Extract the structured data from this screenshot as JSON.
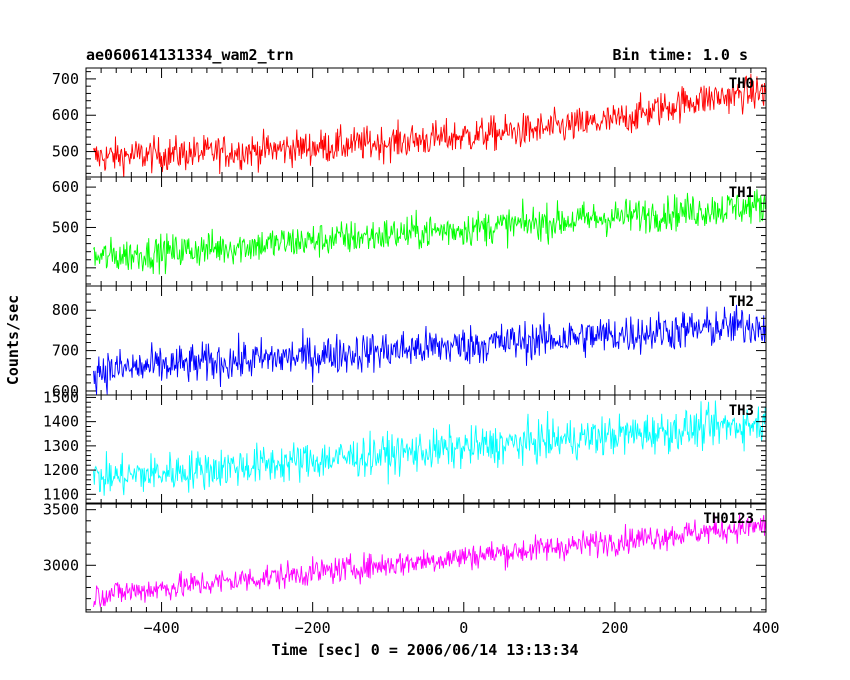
{
  "chart_data": {
    "type": "line",
    "title_left": "ae060614131334_wam2_trn",
    "title_right": "Bin time: 1.0 s",
    "xlabel": "Time [sec] 0 = 2006/06/14 13:13:34",
    "ylabel": "Counts/sec",
    "x_range": [
      -500,
      400
    ],
    "x_ticks": [
      -400,
      -200,
      0,
      200,
      400
    ],
    "x_tick_labels": [
      "−400",
      "−200",
      "0",
      "200",
      "400"
    ],
    "bin_time_s": 1.0,
    "grid": false,
    "panels": [
      {
        "name": "TH0",
        "color": "#ff0000",
        "ylim": [
          430,
          730
        ],
        "y_ticks": [
          500,
          600,
          700
        ],
        "y_tick_labels": [
          "500",
          "600",
          "700"
        ],
        "trend_x": [
          -490,
          -300,
          -100,
          100,
          200,
          300,
          400
        ],
        "trend_y": [
          485,
          500,
          525,
          560,
          585,
          640,
          665
        ],
        "noise_amplitude": 24
      },
      {
        "name": "TH1",
        "color": "#00ff00",
        "ylim": [
          355,
          625
        ],
        "y_ticks": [
          400,
          500,
          600
        ],
        "y_tick_labels": [
          "400",
          "500",
          "600"
        ],
        "trend_x": [
          -490,
          400
        ],
        "trend_y": [
          425,
          555
        ],
        "noise_amplitude": 22
      },
      {
        "name": "TH2",
        "color": "#0000ff",
        "ylim": [
          590,
          860
        ],
        "y_ticks": [
          600,
          700,
          800
        ],
        "y_tick_labels": [
          "600",
          "700",
          "800"
        ],
        "trend_x": [
          -490,
          400
        ],
        "trend_y": [
          650,
          765
        ],
        "noise_amplitude": 25
      },
      {
        "name": "TH3",
        "color": "#00ffff",
        "ylim": [
          1060,
          1510
        ],
        "y_ticks": [
          1100,
          1200,
          1300,
          1400,
          1500
        ],
        "y_tick_labels": [
          "1100",
          "1200",
          "1300",
          "1400",
          "1500"
        ],
        "trend_x": [
          -490,
          400
        ],
        "trend_y": [
          1165,
          1395
        ],
        "noise_amplitude": 42
      },
      {
        "name": "TH0123",
        "color": "#ff00ff",
        "ylim": [
          2580,
          3560
        ],
        "y_ticks": [
          3000,
          3500
        ],
        "y_tick_labels": [
          "3000",
          "3500"
        ],
        "trend_x": [
          -490,
          400
        ],
        "trend_y": [
          2730,
          3360
        ],
        "noise_amplitude": 60
      }
    ]
  }
}
